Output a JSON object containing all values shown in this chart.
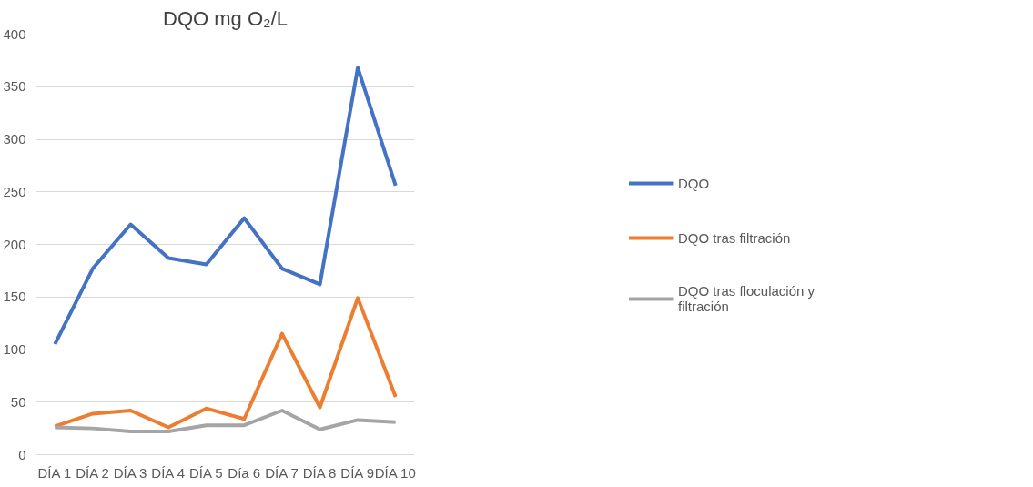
{
  "chart_data": {
    "type": "line",
    "title": "DQO mg O₂/L",
    "categories": [
      "DÍA 1",
      "DÍA 2",
      "DÍA 3",
      "DÍA 4",
      "DÍA 5",
      "Día 6",
      "DÍA 7",
      "DÍA 8",
      "DÍA 9",
      "DÍA 10"
    ],
    "series": [
      {
        "name": "DQO",
        "color": "#4472c4",
        "values": [
          105,
          177,
          219,
          187,
          181,
          225,
          177,
          162,
          368,
          256
        ]
      },
      {
        "name": "DQO tras filtración",
        "color": "#ed7d31",
        "values": [
          27,
          39,
          42,
          26,
          44,
          34,
          115,
          45,
          149,
          55
        ]
      },
      {
        "name": "DQO tras floculación y filtración",
        "color": "#a5a5a5",
        "values": [
          26,
          25,
          22,
          22,
          28,
          28,
          42,
          24,
          33,
          31
        ]
      }
    ],
    "ylim": [
      0,
      400
    ],
    "yticks": [
      0,
      50,
      100,
      150,
      200,
      250,
      300,
      350,
      400
    ],
    "grid": "y",
    "legend": "right",
    "marker": "none",
    "line_style": "solid"
  }
}
